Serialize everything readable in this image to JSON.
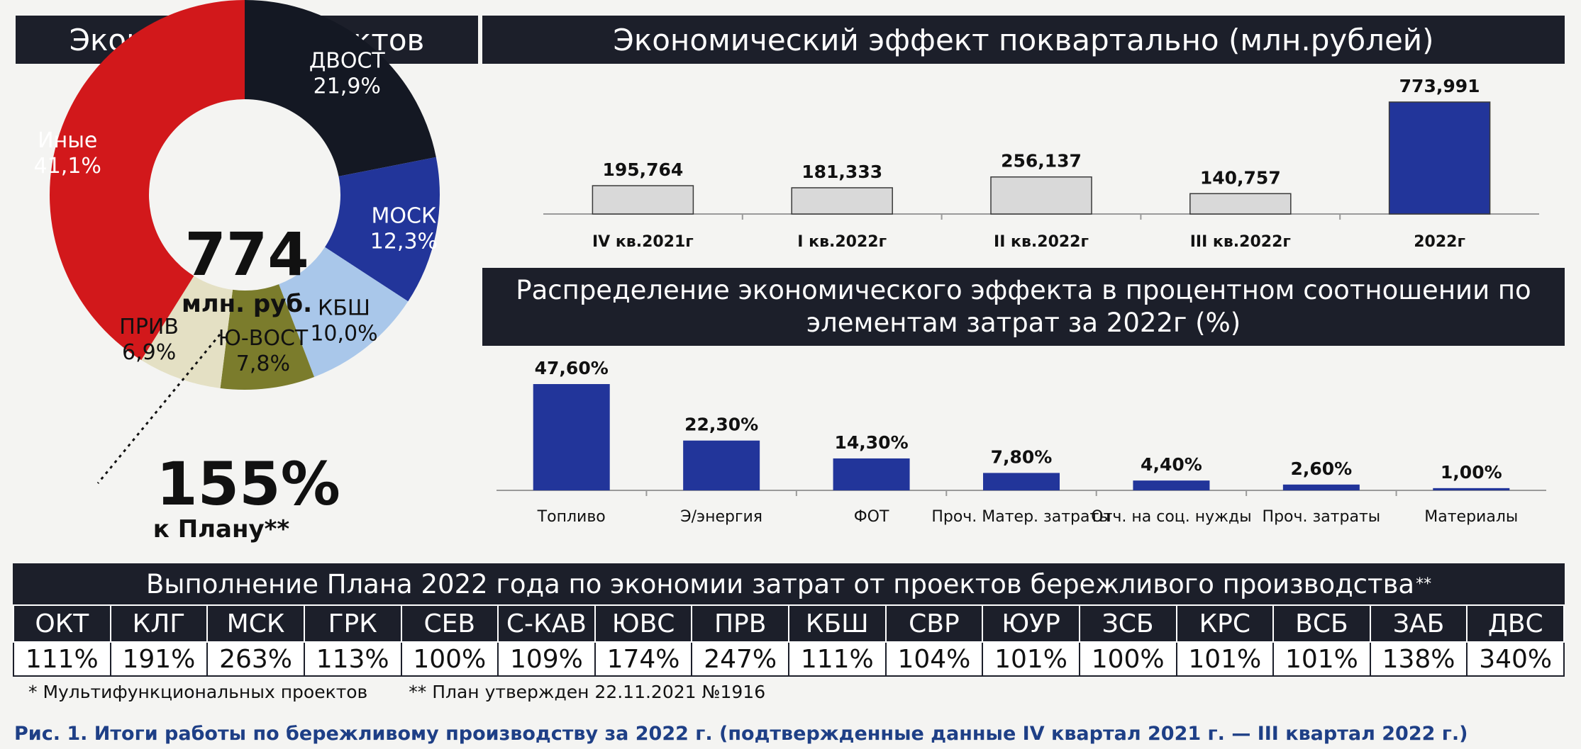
{
  "headers": {
    "donut": "Экономия от проектов",
    "quarterly": "Экономический эффект поквартально (млн.рублей)",
    "distribution_line1": "Распределение экономического эффекта в процентном соотношении по",
    "distribution_line2": "элементам затрат за 2022г (%)",
    "table": "Выполнение  Плана  2022 года по экономии затрат от проектов бережливого производства",
    "table_mark": "**"
  },
  "donut_center": {
    "value": "774",
    "unit": "млн. руб.",
    "plan_percent": "155%",
    "plan_label": "к Плану**"
  },
  "chart_data": [
    {
      "type": "pie",
      "title": "Экономия от проектов",
      "categories": [
        "ДВОСТ",
        "МОСК",
        "КБШ",
        "Ю-ВОСТ",
        "ПРИВ",
        "Иные"
      ],
      "values": [
        21.9,
        12.3,
        10.0,
        7.8,
        6.9,
        41.1
      ],
      "labels": [
        "21,9%",
        "12,3%",
        "10,0%",
        "7,8%",
        "6,9%",
        "41,1%"
      ],
      "colors": [
        "#141823",
        "#22359a",
        "#a9c7ea",
        "#7b7c2c",
        "#e4e0c4",
        "#d2181b"
      ]
    },
    {
      "type": "bar",
      "title": "Экономический эффект поквартально (млн.рублей)",
      "categories": [
        "IV кв.2021г",
        "I кв.2022г",
        "II кв.2022г",
        "III кв.2022г",
        "2022г"
      ],
      "values": [
        195.764,
        181.333,
        256.137,
        140.757,
        773.991
      ],
      "labels": [
        "195,764",
        "181,333",
        "256,137",
        "140,757",
        "773,991"
      ],
      "colors": [
        "#d9d9d9",
        "#d9d9d9",
        "#d9d9d9",
        "#d9d9d9",
        "#22359a"
      ]
    },
    {
      "type": "bar",
      "title": "Распределение экономического эффекта в процентном соотношении по элементам затрат за 2022г (%)",
      "categories": [
        "Топливо",
        "Э/энергия",
        "ФОТ",
        "Проч. Матер. затраты",
        "Отч. на соц. нужды",
        "Проч. затраты",
        "Материалы"
      ],
      "values": [
        47.6,
        22.3,
        14.3,
        7.8,
        4.4,
        2.6,
        1.0
      ],
      "labels": [
        "47,60%",
        "22,30%",
        "14,30%",
        "7,80%",
        "4,40%",
        "2,60%",
        "1,00%"
      ],
      "color": "#22359a"
    }
  ],
  "plan_table": {
    "columns": [
      "ОКТ",
      "КЛГ",
      "МСК",
      "ГРК",
      "СЕВ",
      "С-КАВ",
      "ЮВС",
      "ПРВ",
      "КБШ",
      "СВР",
      "ЮУР",
      "ЗСБ",
      "КРС",
      "ВСБ",
      "ЗАБ",
      "ДВС"
    ],
    "values": [
      "111%",
      "191%",
      "263%",
      "113%",
      "100%",
      "109%",
      "174%",
      "247%",
      "111%",
      "104%",
      "101%",
      "100%",
      "101%",
      "101%",
      "138%",
      "340%"
    ]
  },
  "footnotes": [
    "* Мультифункциональных проектов",
    "** План утвержден 22.11.2021 №1916"
  ],
  "caption": "Рис. 1. Итоги работы по бережливому производству за 2022 г. (подтвержденные данные IV квартал 2021 г. — III квартал 2022 г.)"
}
